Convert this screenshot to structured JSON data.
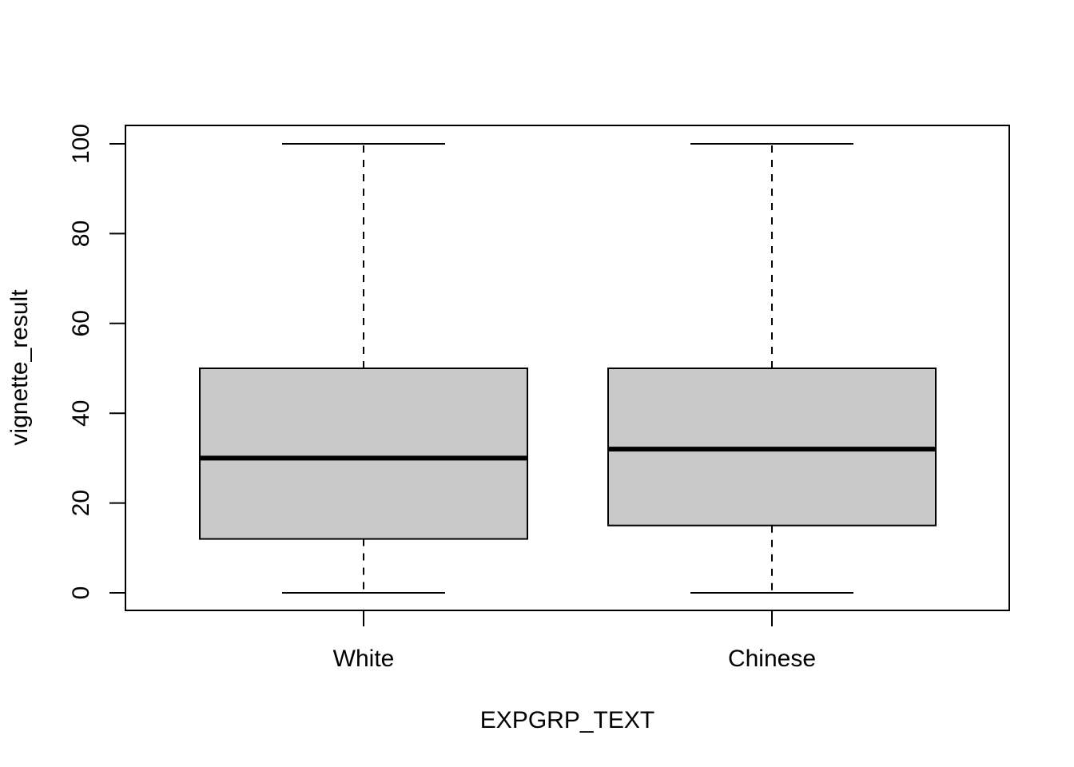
{
  "chart_data": {
    "type": "boxplot",
    "title": "",
    "xlabel": "EXPGRP_TEXT",
    "ylabel": "vignette_result",
    "categories": [
      "White",
      "Chinese"
    ],
    "boxes": [
      {
        "name": "White",
        "min": 0,
        "q1": 12,
        "median": 30,
        "q3": 50,
        "max": 100
      },
      {
        "name": "Chinese",
        "min": 0,
        "q1": 15,
        "median": 32,
        "q3": 50,
        "max": 100
      }
    ],
    "yticks": [
      "0",
      "20",
      "40",
      "60",
      "80",
      "100"
    ],
    "ylim": [
      -4,
      104
    ],
    "grid": false,
    "legend": "none",
    "box_fill": "#c9c9c9",
    "line_color": "#000000"
  }
}
